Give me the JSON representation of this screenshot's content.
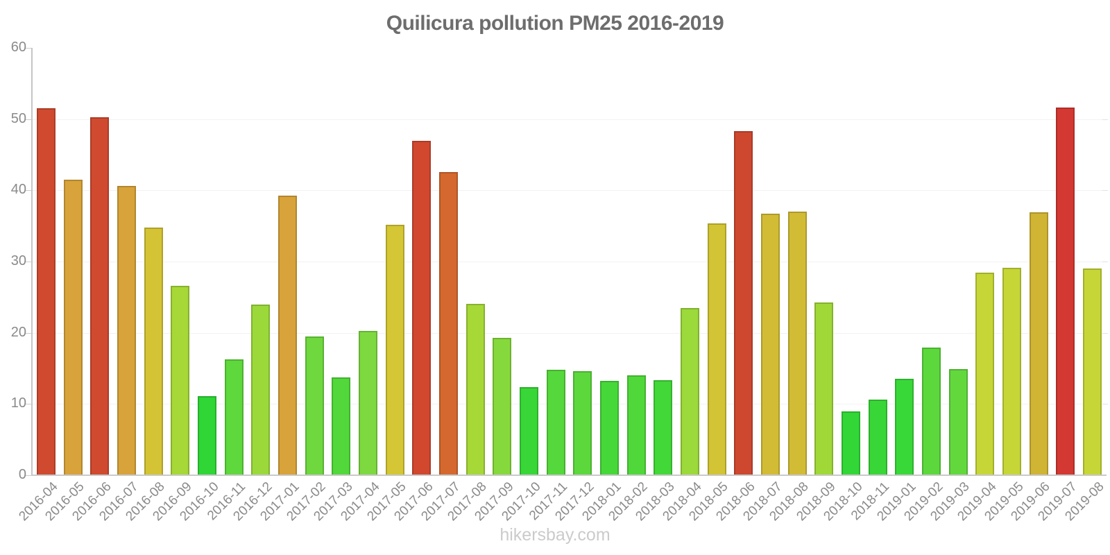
{
  "title": "Quilicura pollution PM25 2016-2019",
  "footer": "hikersbay.com",
  "colors": {
    "title_text": "#6d6d6d",
    "axis_labels": "#8a8a8a",
    "axis_line": "#c5c5c5",
    "baseline": "#c9c9c9",
    "gridline": "#f2f2f2",
    "footer_text": "#cbcbcb",
    "background": "#ffffff"
  },
  "chart_data": {
    "type": "bar",
    "title": "Quilicura pollution PM25 2016-2019",
    "xlabel": "",
    "ylabel": "",
    "ylim": [
      0,
      60
    ],
    "yticks": [
      0,
      10,
      20,
      30,
      40,
      50,
      60
    ],
    "grid": "faint horizontal gridlines at 10-50, light gray baseline at 0",
    "legend": "none",
    "categories": [
      "2016-04",
      "2016-05",
      "2016-06",
      "2016-07",
      "2016-08",
      "2016-09",
      "2016-10",
      "2016-11",
      "2016-12",
      "2017-01",
      "2017-02",
      "2017-03",
      "2017-04",
      "2017-05",
      "2017-06",
      "2017-07",
      "2017-08",
      "2017-09",
      "2017-10",
      "2017-11",
      "2017-12",
      "2018-01",
      "2018-02",
      "2018-03",
      "2018-04",
      "2018-05",
      "2018-06",
      "2018-07",
      "2018-08",
      "2018-09",
      "2018-10",
      "2018-11",
      "2019-01",
      "2019-02",
      "2019-03",
      "2019-04",
      "2019-05",
      "2019-06",
      "2019-07",
      "2019-08"
    ],
    "values": [
      51.5,
      41.5,
      50.3,
      40.6,
      34.8,
      26.6,
      11.1,
      16.3,
      24.0,
      39.3,
      19.5,
      13.7,
      20.3,
      35.2,
      46.9,
      42.6,
      24.1,
      19.3,
      12.4,
      14.8,
      14.6,
      13.2,
      14.0,
      13.3,
      23.5,
      35.4,
      48.3,
      36.7,
      37.0,
      24.3,
      9.0,
      10.6,
      13.5,
      17.9,
      14.9,
      28.4,
      29.1,
      36.9,
      51.6,
      29.0
    ],
    "bar_colors": [
      "#d04a30",
      "#d8a33a",
      "#d04a30",
      "#d8a33a",
      "#d4c334",
      "#a6d837",
      "#2fd636",
      "#5ed83c",
      "#9ad939",
      "#d8a33a",
      "#6ed83e",
      "#52d83a",
      "#7ed940",
      "#d4c634",
      "#d1482f",
      "#d5682f",
      "#a6d837",
      "#86d93c",
      "#38d737",
      "#55d83b",
      "#5cd83c",
      "#46d839",
      "#50d83a",
      "#42d838",
      "#9cd93a",
      "#d2c434",
      "#cd482f",
      "#d2bc36",
      "#d2bc36",
      "#a0d838",
      "#32d737",
      "#38d737",
      "#38d838",
      "#5cd83c",
      "#62d83d",
      "#c6d637",
      "#c6d637",
      "#d0b434",
      "#d33832",
      "#c6d637"
    ]
  }
}
